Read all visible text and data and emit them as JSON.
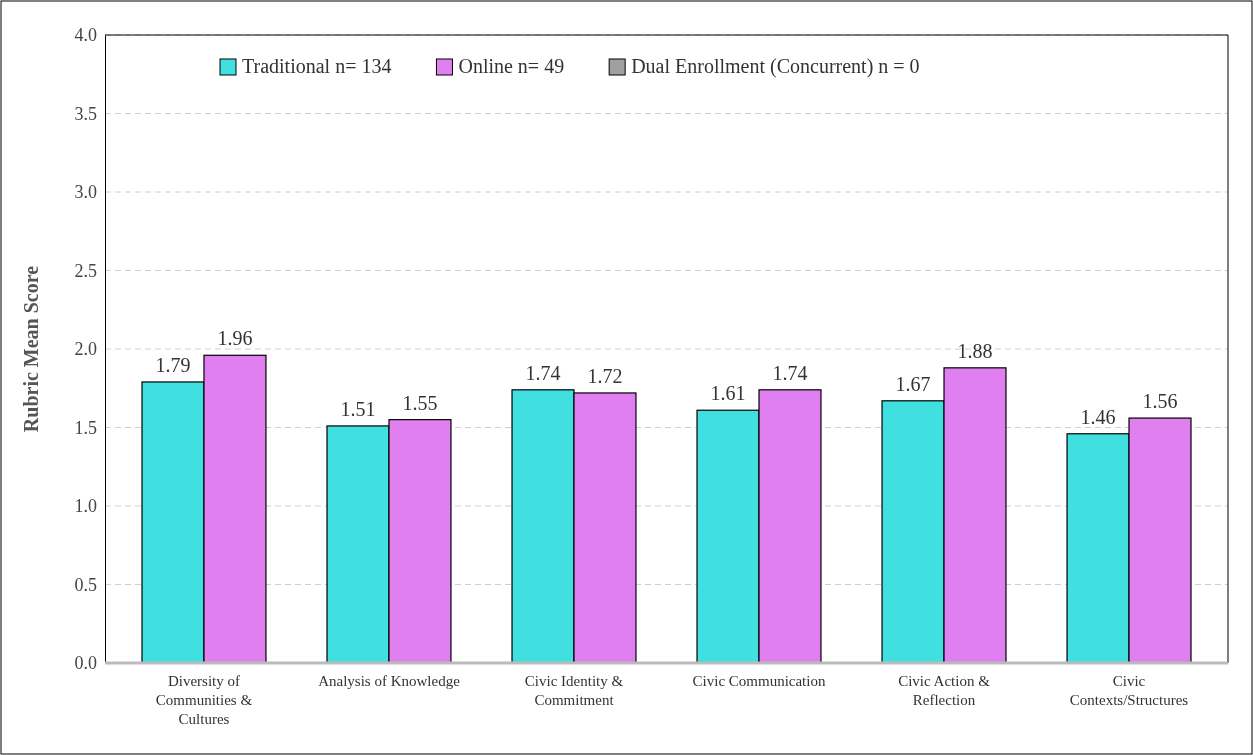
{
  "chart_data": {
    "type": "bar",
    "ylabel": "Rubric Mean Score",
    "categories": [
      "Diversity of Communities & Cultures",
      "Analysis of Knowledge",
      "Civic Identity & Commitment",
      "Civic Communication",
      "Civic Action & Reflection",
      "Civic Contexts/Structures"
    ],
    "series": [
      {
        "name": "Traditional n= 134",
        "color": "#40e0e0",
        "values": [
          1.79,
          1.51,
          1.74,
          1.61,
          1.67,
          1.46
        ]
      },
      {
        "name": "Online n= 49",
        "color": "#e080f0",
        "values": [
          1.96,
          1.55,
          1.72,
          1.74,
          1.88,
          1.56
        ]
      },
      {
        "name": "Dual Enrollment (Concurrent) n = 0",
        "color": "#a0a0a0",
        "values": [
          null,
          null,
          null,
          null,
          null,
          null
        ]
      }
    ],
    "ylim": [
      0,
      4
    ],
    "yticks": [
      {
        "value": 0,
        "label": "0.0"
      },
      {
        "value": 0.5,
        "label": "0.5"
      },
      {
        "value": 1,
        "label": "1.0"
      },
      {
        "value": 1.5,
        "label": "1.5"
      },
      {
        "value": 2,
        "label": "2.0"
      },
      {
        "value": 2.5,
        "label": "2.5"
      },
      {
        "value": 3,
        "label": "3.0"
      },
      {
        "value": 3.5,
        "label": "3.5"
      },
      {
        "value": 4,
        "label": "4.0"
      }
    ],
    "grid": "y",
    "legend": "top",
    "data_labels": true
  }
}
